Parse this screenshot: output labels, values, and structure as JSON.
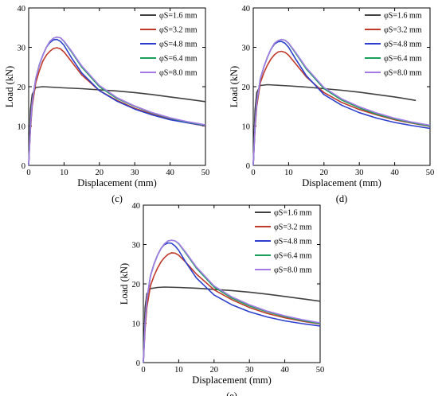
{
  "chart_data": [
    {
      "type": "line",
      "panel_label": "(c)",
      "xlabel": "Displacement (mm)",
      "ylabel": "Load (kN)",
      "xlim": [
        0,
        50
      ],
      "ylim": [
        0,
        40
      ],
      "xticks": [
        0,
        10,
        20,
        30,
        40,
        50
      ],
      "yticks": [
        0,
        10,
        20,
        30,
        40
      ],
      "legend_position": "top-right",
      "series": [
        {
          "name": "φS=1.6 mm",
          "color": "#404040",
          "x": [
            0,
            0.5,
            1,
            2,
            4,
            6,
            10,
            15,
            20,
            25,
            30,
            35,
            40,
            45,
            50
          ],
          "y": [
            0,
            14,
            18,
            19.8,
            20.0,
            19.9,
            19.7,
            19.5,
            19.2,
            18.9,
            18.5,
            18.0,
            17.4,
            16.8,
            16.2
          ]
        },
        {
          "name": "φS=3.2 mm",
          "color": "#c0392b",
          "x": [
            0,
            0.5,
            1,
            2,
            3,
            4,
            5,
            6,
            7,
            8,
            9,
            10,
            12,
            15,
            20,
            25,
            30,
            35,
            40,
            45,
            50
          ],
          "y": [
            0,
            9,
            15,
            21,
            24,
            26.5,
            28,
            29,
            29.7,
            29.9,
            29.6,
            28.8,
            26.5,
            23,
            19,
            16.5,
            14.5,
            13,
            11.8,
            10.8,
            10
          ]
        },
        {
          "name": "φS=4.8 mm",
          "color": "#2b3fcc",
          "x": [
            0,
            0.5,
            1,
            2,
            3,
            4,
            5,
            6,
            7,
            8,
            9,
            10,
            12,
            15,
            20,
            25,
            30,
            35,
            40,
            45,
            50
          ],
          "y": [
            0,
            10,
            16,
            22,
            25.5,
            28,
            30,
            31.2,
            31.9,
            32,
            31.5,
            30.5,
            27.5,
            23.5,
            19,
            16.3,
            14.3,
            12.8,
            11.6,
            10.8,
            10.1
          ]
        },
        {
          "name": "φS=6.4 mm",
          "color": "#1aa05a",
          "x": [
            0,
            0.5,
            1,
            2,
            3,
            4,
            5,
            6,
            7,
            8,
            9,
            10,
            12,
            15,
            20,
            25,
            30,
            35,
            40,
            45,
            50
          ],
          "y": [
            0,
            10,
            16,
            22,
            25.5,
            28,
            30,
            31.5,
            32.3,
            32.6,
            32.4,
            31.5,
            29,
            25,
            20,
            17,
            15,
            13.3,
            12,
            11,
            10.2
          ]
        },
        {
          "name": "φS=8.0 mm",
          "color": "#a57ae6",
          "x": [
            0,
            0.5,
            1,
            2,
            3,
            4,
            5,
            6,
            7,
            8,
            9,
            10,
            12,
            15,
            20,
            25,
            30,
            35,
            40,
            45,
            50
          ],
          "y": [
            0,
            10,
            16,
            22,
            25.5,
            28,
            30,
            31.5,
            32.3,
            32.6,
            32.4,
            31.6,
            29.2,
            25.3,
            20.3,
            17.2,
            15.1,
            13.4,
            12.1,
            11.1,
            10.3
          ]
        }
      ]
    },
    {
      "type": "line",
      "panel_label": "(d)",
      "xlabel": "Displacement (mm)",
      "ylabel": "Load (kN)",
      "xlim": [
        0,
        50
      ],
      "ylim": [
        0,
        40
      ],
      "xticks": [
        0,
        10,
        20,
        30,
        40,
        50
      ],
      "yticks": [
        0,
        10,
        20,
        30,
        40
      ],
      "legend_position": "top-right",
      "series": [
        {
          "name": "φS=1.6 mm",
          "color": "#404040",
          "x": [
            0,
            0.5,
            1,
            2,
            4,
            6,
            10,
            15,
            20,
            25,
            30,
            35,
            40,
            46
          ],
          "y": [
            0,
            14,
            18.5,
            20.3,
            20.5,
            20.4,
            20.2,
            19.9,
            19.5,
            19.1,
            18.6,
            18.0,
            17.4,
            16.5
          ]
        },
        {
          "name": "φS=3.2 mm",
          "color": "#c0392b",
          "x": [
            0,
            0.5,
            1,
            2,
            3,
            4,
            5,
            6,
            7,
            8,
            9,
            10,
            12,
            15,
            20,
            25,
            30,
            35,
            40,
            45,
            50
          ],
          "y": [
            0,
            9,
            15,
            21,
            23.5,
            25.5,
            27,
            28.1,
            28.8,
            29,
            28.7,
            28,
            25.8,
            22.5,
            18.5,
            16,
            14.2,
            12.8,
            11.6,
            10.7,
            9.9
          ]
        },
        {
          "name": "φS=4.8 mm",
          "color": "#2b3fcc",
          "x": [
            0,
            0.5,
            1,
            2,
            3,
            4,
            5,
            6,
            7,
            8,
            9,
            10,
            12,
            15,
            20,
            25,
            30,
            35,
            40,
            45,
            50
          ],
          "y": [
            0,
            10,
            16,
            22,
            25,
            27.5,
            29.5,
            30.8,
            31.4,
            31.5,
            31,
            30,
            27,
            22.8,
            18,
            15.3,
            13.4,
            12,
            10.9,
            10.1,
            9.4
          ]
        },
        {
          "name": "φS=6.4 mm",
          "color": "#1aa05a",
          "x": [
            0,
            0.5,
            1,
            2,
            3,
            4,
            5,
            6,
            7,
            8,
            9,
            10,
            12,
            15,
            20,
            25,
            30,
            35,
            40,
            45,
            50
          ],
          "y": [
            0,
            10,
            16,
            22,
            25,
            27.5,
            29.5,
            31,
            31.7,
            32,
            31.8,
            31,
            28.5,
            24.5,
            19.5,
            16.6,
            14.6,
            13,
            11.8,
            10.8,
            10
          ]
        },
        {
          "name": "φS=8.0 mm",
          "color": "#a57ae6",
          "x": [
            0,
            0.5,
            1,
            2,
            3,
            4,
            5,
            6,
            7,
            8,
            9,
            10,
            12,
            15,
            20,
            25,
            30,
            35,
            40,
            45,
            50
          ],
          "y": [
            0,
            10,
            16,
            22,
            25,
            27.5,
            29.5,
            31,
            31.7,
            32,
            31.8,
            31.1,
            28.7,
            24.8,
            19.8,
            16.9,
            14.9,
            13.3,
            12,
            11,
            10.2
          ]
        }
      ]
    },
    {
      "type": "line",
      "panel_label": "(e)",
      "xlabel": "Displacement (mm)",
      "ylabel": "Load (kN)",
      "xlim": [
        0,
        50
      ],
      "ylim": [
        0,
        40
      ],
      "xticks": [
        0,
        10,
        20,
        30,
        40,
        50
      ],
      "yticks": [
        0,
        10,
        20,
        30,
        40
      ],
      "legend_position": "top-right",
      "series": [
        {
          "name": "φS=1.6 mm",
          "color": "#404040",
          "x": [
            0,
            0.5,
            1,
            2,
            4,
            6,
            10,
            15,
            20,
            25,
            30,
            35,
            40,
            45,
            50
          ],
          "y": [
            0,
            14,
            17.5,
            18.8,
            19.1,
            19.2,
            19.1,
            18.9,
            18.6,
            18.3,
            17.9,
            17.4,
            16.8,
            16.2,
            15.6
          ]
        },
        {
          "name": "φS=3.2 mm",
          "color": "#c0392b",
          "x": [
            0,
            0.5,
            1,
            2,
            3,
            4,
            5,
            6,
            7,
            8,
            9,
            10,
            12,
            15,
            20,
            25,
            30,
            35,
            40,
            45,
            50
          ],
          "y": [
            0,
            8.5,
            14,
            19.5,
            22,
            24,
            25.6,
            26.7,
            27.5,
            27.9,
            27.8,
            27.3,
            25.5,
            22.5,
            18.5,
            16,
            14,
            12.5,
            11.4,
            10.5,
            9.8
          ]
        },
        {
          "name": "φS=4.8 mm",
          "color": "#2b3fcc",
          "x": [
            0,
            0.5,
            1,
            2,
            3,
            4,
            5,
            6,
            7,
            8,
            9,
            10,
            12,
            15,
            20,
            25,
            30,
            35,
            40,
            45,
            50
          ],
          "y": [
            0,
            10,
            16,
            22,
            25,
            27.3,
            29,
            30,
            30.4,
            30.3,
            29.6,
            28.5,
            25.5,
            21.5,
            17.2,
            14.7,
            12.9,
            11.6,
            10.6,
            9.9,
            9.3
          ]
        },
        {
          "name": "φS=6.4 mm",
          "color": "#1aa05a",
          "x": [
            0,
            0.5,
            1,
            2,
            3,
            4,
            5,
            6,
            7,
            8,
            9,
            10,
            12,
            15,
            20,
            25,
            30,
            35,
            40,
            45,
            50
          ],
          "y": [
            0,
            10,
            16,
            22,
            25,
            27.3,
            29,
            30.2,
            30.9,
            31.1,
            30.9,
            30.2,
            27.8,
            24,
            19.2,
            16.4,
            14.4,
            12.9,
            11.7,
            10.7,
            9.9
          ]
        },
        {
          "name": "φS=8.0 mm",
          "color": "#a57ae6",
          "x": [
            0,
            0.5,
            1,
            2,
            3,
            4,
            5,
            6,
            7,
            8,
            9,
            10,
            12,
            15,
            20,
            25,
            30,
            35,
            40,
            45,
            50
          ],
          "y": [
            0,
            10,
            16,
            22,
            25,
            27.3,
            29,
            30.2,
            30.9,
            31.1,
            30.9,
            30.3,
            28,
            24.3,
            19.5,
            16.7,
            14.7,
            13.1,
            11.9,
            10.9,
            10.1
          ]
        }
      ]
    }
  ]
}
